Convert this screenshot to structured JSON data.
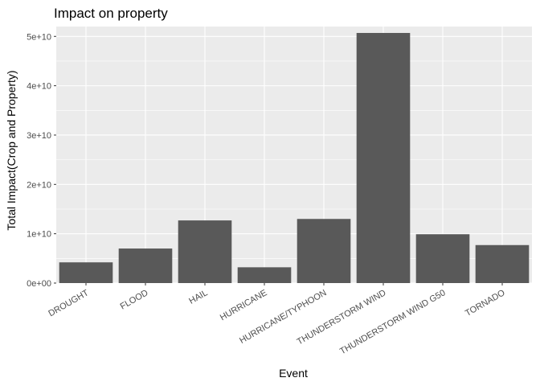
{
  "chart_data": {
    "type": "bar",
    "title": "Impact on property",
    "xlabel": "Event",
    "ylabel": "Total Impact(Crop and Property)",
    "categories": [
      "DROUGHT",
      "FLOOD",
      "HAIL",
      "HURRICANE",
      "HURRICANE/TYPHOON",
      "THUNDERSTORM WIND",
      "THUNDERSTORM WIND G50",
      "TORNADO"
    ],
    "values": [
      4200000000.0,
      7000000000.0,
      12700000000.0,
      3200000000.0,
      13000000000.0,
      50700000000.0,
      9900000000.0,
      7700000000.0
    ],
    "ylim": [
      0,
      52000000000.0
    ],
    "yticks": [
      0,
      10000000000.0,
      20000000000.0,
      30000000000.0,
      40000000000.0,
      50000000000.0
    ],
    "ytick_labels": [
      "0e+00",
      "1e+10",
      "2e+10",
      "3e+10",
      "4e+10",
      "5e+10"
    ],
    "grid": true,
    "colors": {
      "panel": "#ebebeb",
      "grid_major": "#ffffff",
      "bar": "#595959",
      "tick": "#333333"
    }
  }
}
